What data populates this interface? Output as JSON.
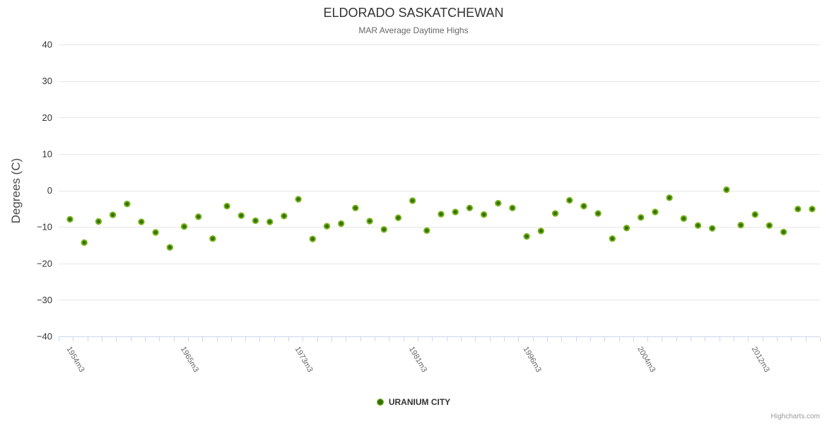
{
  "credit": "Highcharts.com",
  "colors": {
    "background": "#ffffff",
    "title": "#333333",
    "subtitle": "#666666",
    "y_tick_label": "#333333",
    "x_tick_label": "#666666",
    "grid_line": "#e6e6e6",
    "axis_line": "#ccd6eb",
    "credit": "#999999"
  },
  "chart_data": {
    "type": "scatter",
    "title": "ELDORADO SASKATCHEWAN",
    "subtitle": "MAR Average Daytime Highs",
    "xlabel": "",
    "ylabel": "Degrees (C)",
    "ylim": [
      -40,
      40
    ],
    "y_tick_step": 10,
    "grid": true,
    "legend_position": "bottom-center",
    "x_ticks": [
      {
        "index": 0,
        "label": "1954m3"
      },
      {
        "index": 8,
        "label": "1965m3"
      },
      {
        "index": 16,
        "label": "1973m3"
      },
      {
        "index": 24,
        "label": "1981m3"
      },
      {
        "index": 32,
        "label": "1996m3"
      },
      {
        "index": 40,
        "label": "2004m3"
      },
      {
        "index": 48,
        "label": "2012m3"
      }
    ],
    "series": [
      {
        "name": "URANIUM CITY",
        "marker_outer_color": "#7cb820",
        "marker_inner_color": "#336e04",
        "values": [
          -7.9,
          -14.3,
          -8.5,
          -6.7,
          -3.7,
          -8.6,
          -11.5,
          -15.6,
          -9.9,
          -7.2,
          -13.2,
          -4.3,
          -6.9,
          -8.3,
          -8.6,
          -7.0,
          -2.4,
          -13.3,
          -9.8,
          -9.1,
          -4.8,
          -8.4,
          -10.7,
          -7.5,
          -2.8,
          -11.0,
          -6.5,
          -5.9,
          -4.8,
          -6.6,
          -3.5,
          -4.8,
          -12.6,
          -11.1,
          -6.3,
          -2.7,
          -4.3,
          -6.3,
          -13.2,
          -10.3,
          -7.4,
          -5.9,
          -2.0,
          -7.7,
          -9.6,
          -10.4,
          0.2,
          -9.5,
          -6.6,
          -9.6,
          -11.4,
          -5.1,
          -5.1
        ]
      }
    ]
  }
}
